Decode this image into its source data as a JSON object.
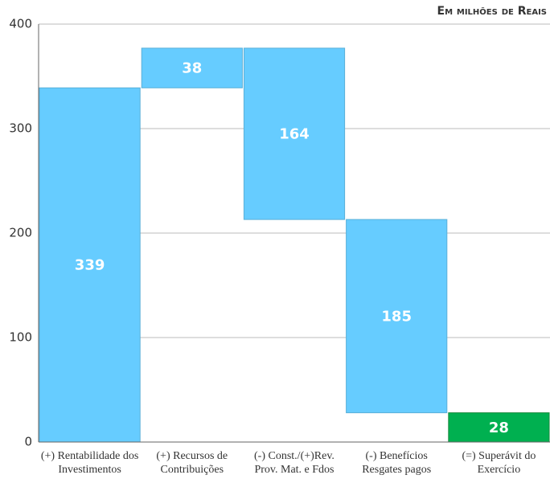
{
  "chart_data": {
    "type": "waterfall",
    "subtitle": "Em milhões de Reais",
    "categories": [
      "(+) Rentabilidade dos Investimentos",
      "(+) Recursos de Contribuições",
      "(-) Const./(+)Rev. Prov. Mat. e Fdos",
      "(-) Benefícios Resgates pagos",
      "(=) Superávit do Exercício"
    ],
    "values": [
      339,
      38,
      164,
      185,
      28
    ],
    "direction": [
      "up",
      "up",
      "down",
      "down",
      "total"
    ],
    "color": "#66ccff",
    "total_color": "#00b050",
    "ylim": [
      0,
      400
    ],
    "yticks": [
      0,
      100,
      200,
      300,
      400
    ],
    "grid": true
  }
}
